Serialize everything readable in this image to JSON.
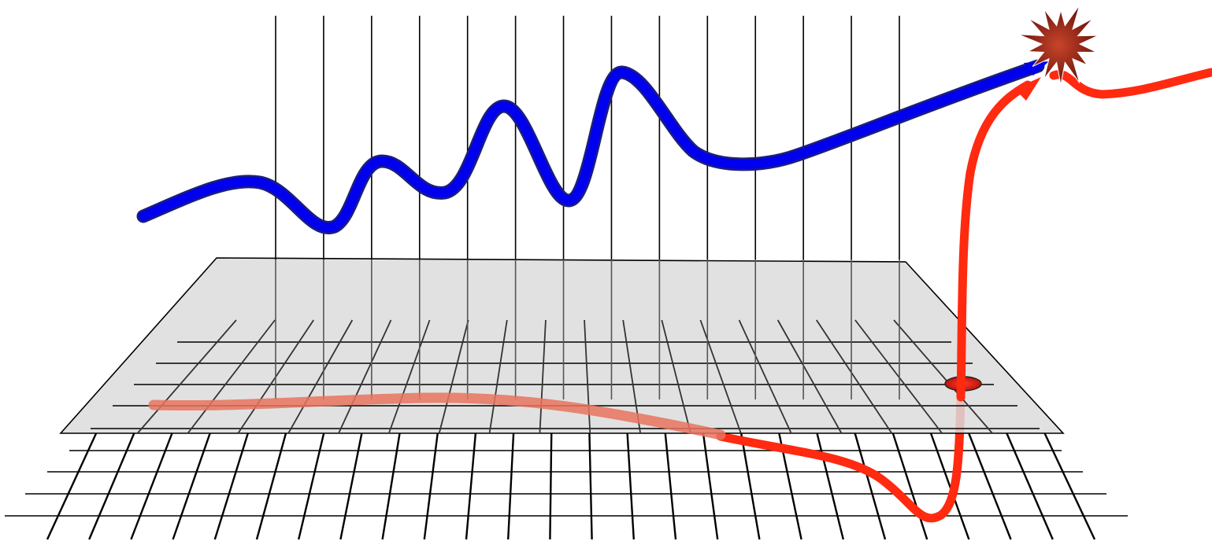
{
  "diagram": {
    "vertical_lines": 14,
    "plane_grid_rows": 5,
    "plane_grid_cols": 18,
    "floor_grid_rows": 4,
    "floor_grid_cols": 26
  },
  "colors": {
    "background": "#ffffff",
    "plane_fill": "#dcdcdc",
    "plane_stroke": "#000000",
    "grid": "#000000",
    "blue_path": "#0000ee",
    "red_path": "#ff2a10",
    "red_path_faded": "#e8735e",
    "star_fill": "#7a0e08"
  },
  "icons": {
    "burst": "explosion-star-icon",
    "hole": "hole-marker-icon"
  }
}
